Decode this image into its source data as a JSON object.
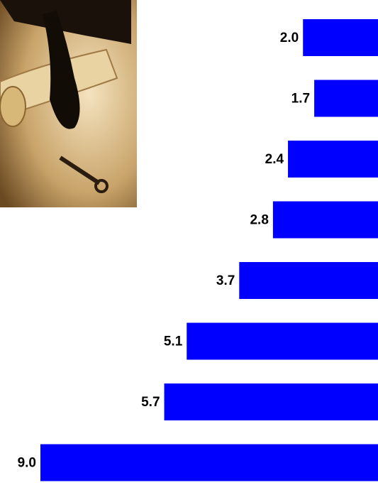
{
  "chart_data": {
    "type": "bar",
    "orientation": "horizontal",
    "categories": [
      null,
      null,
      null,
      null,
      null,
      null,
      null,
      null
    ],
    "values": [
      2.0,
      1.7,
      2.4,
      2.8,
      3.7,
      5.1,
      5.7,
      9.0
    ],
    "value_labels": [
      "2.0",
      "1.7",
      "2.4",
      "2.8",
      "3.7",
      "5.1",
      "5.7",
      "9.0"
    ],
    "color": "#0000ff"
  }
}
